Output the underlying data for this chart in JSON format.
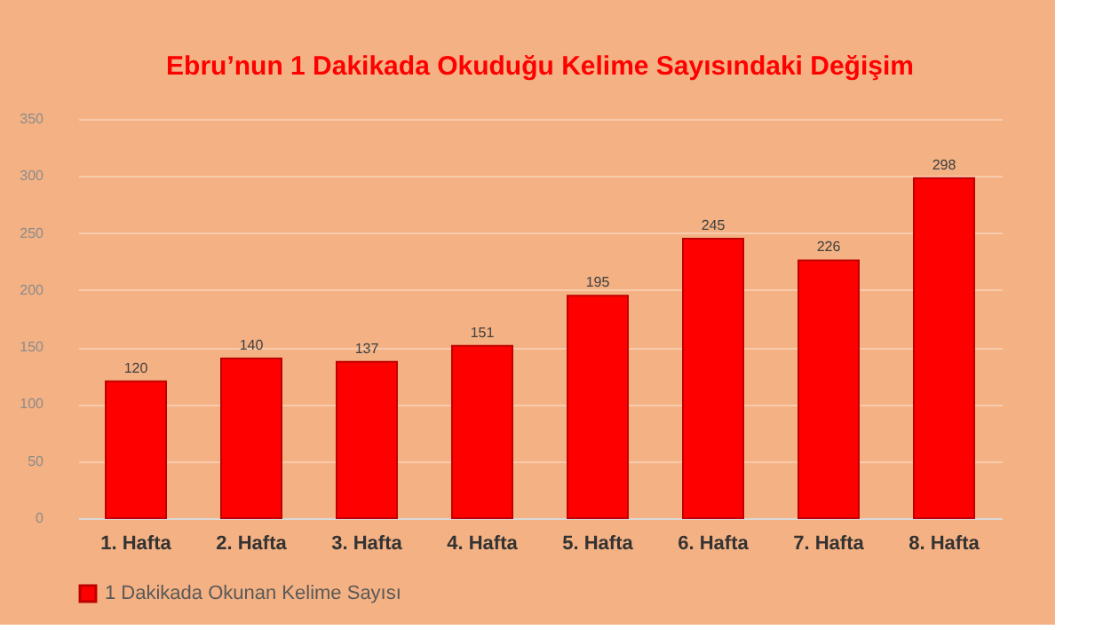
{
  "chart_data": {
    "type": "bar",
    "title": "Ebru’nun 1 Dakikada Okuduğu Kelime Sayısındaki Değişim",
    "categories": [
      "1. Hafta",
      "2. Hafta",
      "3. Hafta",
      "4. Hafta",
      "5. Hafta",
      "6. Hafta",
      "7. Hafta",
      "8. Hafta"
    ],
    "series": [
      {
        "name": "1 Dakikada Okunan Kelime Sayısı",
        "color": "#ff0000",
        "values": [
          120,
          140,
          137,
          151,
          195,
          245,
          226,
          298
        ]
      }
    ],
    "ylim": [
      0,
      350
    ],
    "yticks": [
      0,
      50,
      100,
      150,
      200,
      250,
      300,
      350
    ],
    "grid": "y",
    "legend": "bottom",
    "data_labels": true
  }
}
